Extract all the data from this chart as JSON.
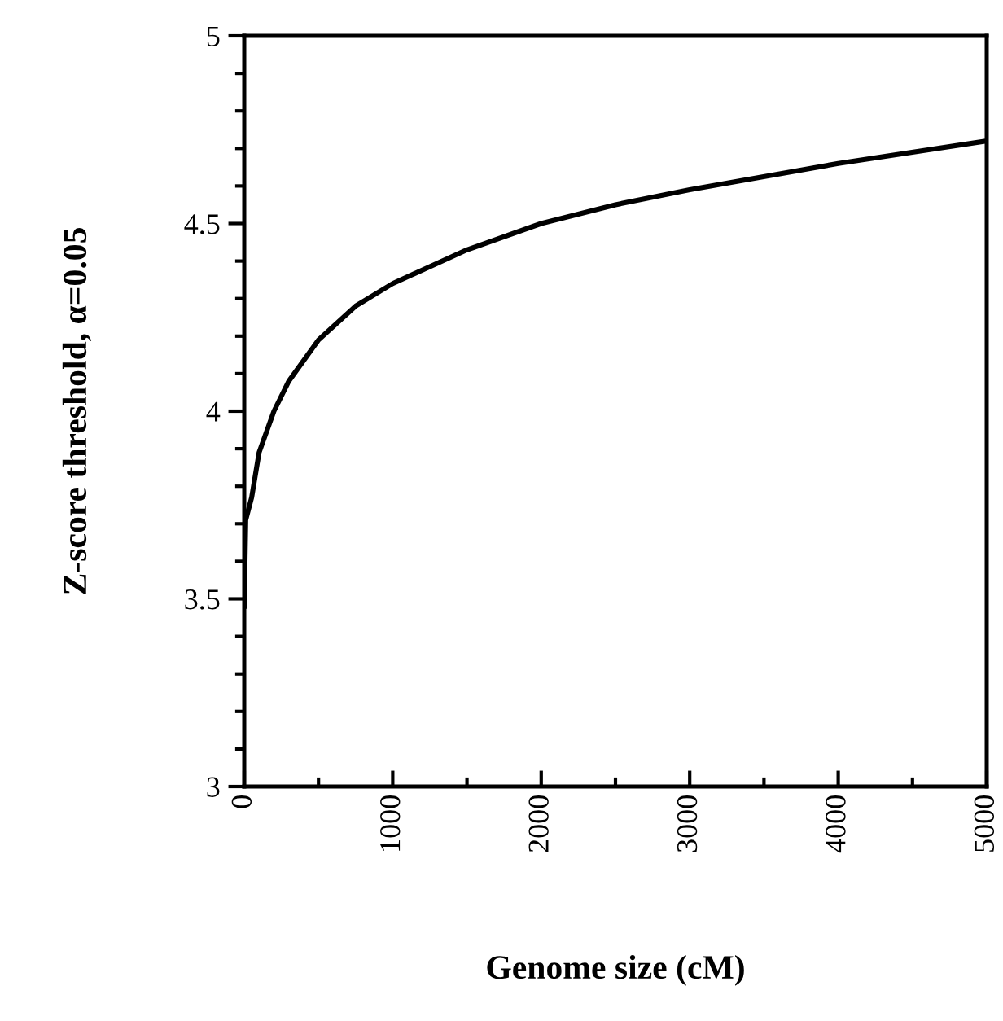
{
  "chart_data": {
    "type": "line",
    "xlabel": "Genome size (cM)",
    "ylabel": "Z-score threshold, α=0.05",
    "series": [
      {
        "color": "#000000",
        "x": [
          0,
          10,
          50,
          100,
          200,
          300,
          500,
          750,
          1000,
          1500,
          2000,
          2500,
          3000,
          4000,
          5000
        ],
        "values": [
          3.48,
          3.71,
          3.77,
          3.89,
          4.0,
          4.08,
          4.19,
          4.28,
          4.34,
          4.43,
          4.5,
          4.55,
          4.59,
          4.66,
          4.72
        ]
      }
    ],
    "xlim": [
      0,
      5000
    ],
    "ylim": [
      3,
      5
    ],
    "xticks": [
      0,
      1000,
      2000,
      3000,
      4000,
      5000
    ],
    "yticks": [
      3,
      3.5,
      4,
      4.5,
      5
    ],
    "grid": false,
    "legend": false,
    "marker": "none",
    "line_style": "solid"
  }
}
